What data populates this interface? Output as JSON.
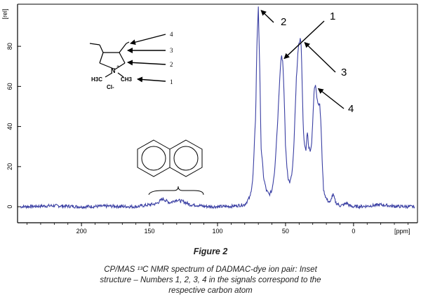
{
  "chart_data": {
    "type": "line",
    "xlabel": "[ppm]",
    "ylabel": "[rel]",
    "x_reversed": true,
    "xlim": [
      247,
      -47
    ],
    "ylim": [
      -8,
      101
    ],
    "x_ticks": [
      200,
      150,
      100,
      50,
      0
    ],
    "y_ticks": [
      0,
      20,
      40,
      60,
      80
    ],
    "x_tick_labels": [
      "200",
      "150",
      "100",
      "50",
      "0"
    ],
    "y_tick_labels": [
      "0",
      "20",
      "40",
      "60",
      "80"
    ],
    "grid": false,
    "line_color": "#3a3fa3",
    "series": [
      {
        "x": [
          245,
          220,
          200,
          180,
          160,
          150,
          145,
          140,
          138,
          135,
          130,
          128,
          125,
          120,
          115,
          110,
          100,
          90,
          80,
          76,
          74,
          72,
          71,
          70,
          69,
          68,
          66,
          64,
          62,
          60,
          58,
          56,
          54,
          53,
          52,
          51,
          50,
          49,
          48,
          47,
          46,
          45,
          44,
          43,
          42,
          41,
          40,
          39,
          38.5,
          38,
          37,
          36,
          35,
          34,
          33,
          32,
          31,
          30,
          29,
          28,
          27.5,
          27,
          26,
          25,
          24,
          23,
          22,
          20,
          19,
          17,
          16,
          15,
          13,
          10,
          7,
          5,
          3,
          0,
          -10,
          -20,
          -30,
          -45
        ],
        "y": [
          0,
          0.5,
          0,
          0.3,
          0,
          1,
          1.5,
          4,
          3,
          2,
          3.5,
          3,
          2.5,
          1,
          0.8,
          0.2,
          0,
          0.2,
          1,
          5,
          14,
          45,
          82,
          100,
          70,
          30,
          14,
          8,
          6,
          8,
          18,
          40,
          68,
          76,
          72,
          55,
          30,
          20,
          14,
          12,
          14,
          18,
          28,
          46,
          64,
          76,
          82,
          84,
          80,
          68,
          40,
          30,
          28,
          38,
          30,
          28,
          30,
          42,
          58,
          61,
          59,
          55,
          51,
          52,
          42,
          22,
          8,
          4,
          3,
          2,
          5,
          6,
          2,
          0.5,
          1,
          2,
          0.5,
          0,
          0.3,
          1,
          0.2,
          0
        ]
      }
    ],
    "annotations": [
      {
        "text": "1",
        "x": 53,
        "y": 76
      },
      {
        "text": "2",
        "x": 70,
        "y": 100
      },
      {
        "text": "3",
        "x": 38,
        "y": 84
      },
      {
        "text": "4",
        "x": 28,
        "y": 61
      }
    ]
  },
  "inset": {
    "atom_labels": [
      "4",
      "3",
      "2",
      "1"
    ],
    "formula_left": "H3C",
    "formula_right": "CH3",
    "nitrogen": "N",
    "charge": "+",
    "chloride": "Cl-"
  },
  "caption": {
    "figure_title": "Figure 2",
    "line1": "CP/MAS ¹³C NMR spectrum of  DADMAC-dye ion pair: Inset",
    "line2": "structure – Numbers 1, 2, 3, 4  in the signals correspond to the",
    "line3": "respective carbon atom"
  }
}
